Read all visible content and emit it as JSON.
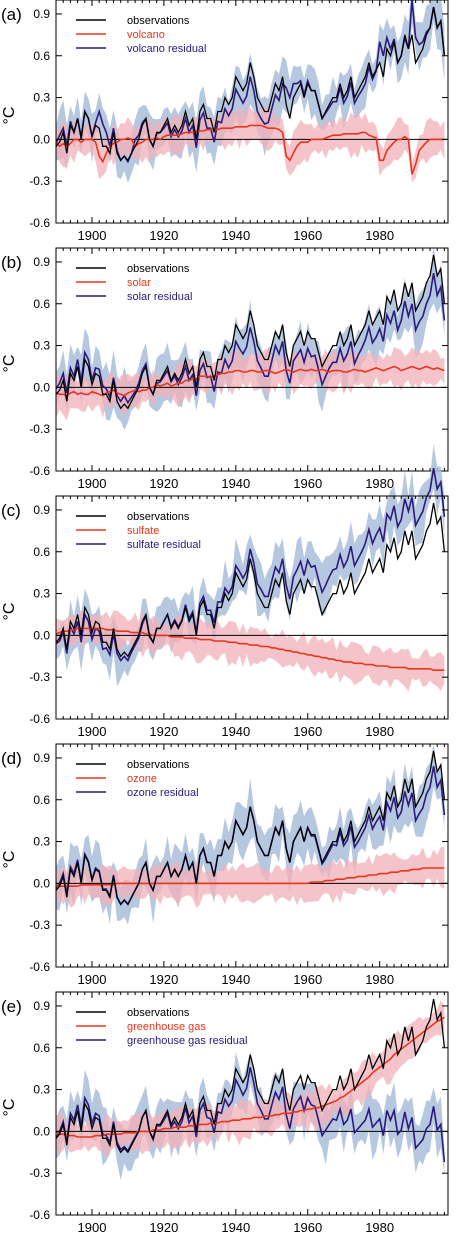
{
  "figure": {
    "panels": [
      {
        "label": "(a)",
        "legend": [
          "observations",
          "volcano",
          "volcano residual"
        ]
      },
      {
        "label": "(b)",
        "legend": [
          "observations",
          "solar",
          "solar residual"
        ]
      },
      {
        "label": "(c)",
        "legend": [
          "observations",
          "sulfate",
          "sulfate residual"
        ]
      },
      {
        "label": "(d)",
        "legend": [
          "observations",
          "ozone",
          "ozone residual"
        ]
      },
      {
        "label": "(e)",
        "legend": [
          "observations",
          "greenhouse gas",
          "greenhouse gas residual"
        ]
      }
    ]
  },
  "chart_data": {
    "type": "line",
    "ylabel": "°C",
    "xlim": [
      1890,
      1999
    ],
    "ylim": [
      -0.6,
      1.0
    ],
    "x_ticks": [
      1900,
      1920,
      1940,
      1960,
      1980
    ],
    "y_ticks": [
      -0.6,
      -0.3,
      0.0,
      0.3,
      0.6,
      0.9
    ],
    "grid": false,
    "legend_position": "top-left",
    "colors": {
      "observations": "#000000",
      "forced": "#e8361c",
      "residual": "#2a1b7a",
      "forced_band": "#f2b0b8",
      "residual_band": "#a9bedb"
    },
    "observations": [
      -0.05,
      -0.02,
      0.05,
      -0.1,
      0.1,
      0.05,
      0.15,
      0.0,
      0.2,
      0.15,
      0.02,
      0.1,
      0.08,
      -0.05,
      -0.05,
      -0.1,
      0.05,
      -0.1,
      -0.15,
      -0.12,
      -0.15,
      -0.1,
      -0.05,
      0.0,
      0.1,
      0.15,
      0.0,
      -0.05,
      0.05,
      0.05,
      0.1,
      0.15,
      0.05,
      0.1,
      0.05,
      0.1,
      0.2,
      0.1,
      0.15,
      0.0,
      0.2,
      0.25,
      0.15,
      0.15,
      0.05,
      0.2,
      0.2,
      0.3,
      0.25,
      0.3,
      0.45,
      0.4,
      0.35,
      0.4,
      0.55,
      0.45,
      0.3,
      0.25,
      0.2,
      0.2,
      0.3,
      0.4,
      0.35,
      0.45,
      0.25,
      0.15,
      0.3,
      0.35,
      0.4,
      0.3,
      0.4,
      0.35,
      0.35,
      0.25,
      0.15,
      0.2,
      0.25,
      0.3,
      0.3,
      0.4,
      0.3,
      0.35,
      0.45,
      0.3,
      0.35,
      0.4,
      0.45,
      0.55,
      0.45,
      0.5,
      0.55,
      0.45,
      0.65,
      0.6,
      0.7,
      0.55,
      0.6,
      0.75,
      0.65,
      0.75,
      0.55,
      0.6,
      0.65,
      0.75,
      0.8,
      0.95,
      0.8,
      0.85,
      0.6
    ],
    "series": [
      {
        "panel": "(a)",
        "forced": [
          -0.02,
          -0.05,
          -0.03,
          -0.05,
          -0.03,
          0.0,
          0.0,
          -0.02,
          0.0,
          0.0,
          0.0,
          -0.02,
          -0.12,
          -0.16,
          -0.1,
          -0.05,
          -0.03,
          -0.02,
          0.0,
          0.0,
          0.01,
          0.0,
          -0.05,
          -0.03,
          -0.02,
          0.0,
          0.0,
          0.0,
          0.01,
          0.0,
          0.02,
          0.03,
          0.03,
          0.03,
          0.03,
          0.04,
          0.05,
          0.05,
          0.05,
          0.06,
          0.06,
          0.06,
          0.07,
          0.07,
          0.07,
          0.07,
          0.08,
          0.08,
          0.08,
          0.08,
          0.09,
          0.09,
          0.09,
          0.09,
          0.1,
          0.1,
          0.1,
          0.1,
          0.09,
          0.08,
          0.08,
          0.08,
          0.07,
          0.05,
          -0.12,
          -0.15,
          -0.1,
          -0.05,
          -0.02,
          -0.02,
          -0.02,
          0.0,
          0.0,
          0.0,
          0.0,
          0.01,
          0.02,
          0.03,
          0.03,
          0.03,
          0.04,
          0.04,
          0.04,
          0.04,
          0.04,
          0.05,
          0.05,
          0.03,
          0.02,
          0.01,
          -0.15,
          -0.15,
          -0.08,
          -0.05,
          -0.02,
          0.0,
          0.0,
          0.02,
          0.0,
          -0.25,
          -0.18,
          -0.08,
          -0.05,
          -0.02,
          0.0,
          0.0,
          0.0,
          0.0,
          0.0
        ]
      },
      {
        "panel": "(b)",
        "forced": [
          -0.04,
          -0.05,
          -0.05,
          -0.06,
          -0.04,
          -0.03,
          -0.05,
          -0.04,
          -0.05,
          -0.05,
          -0.03,
          -0.04,
          -0.05,
          -0.06,
          -0.04,
          -0.03,
          -0.02,
          -0.04,
          -0.05,
          -0.06,
          -0.04,
          -0.03,
          -0.02,
          -0.03,
          -0.02,
          -0.02,
          0.0,
          0.0,
          0.02,
          0.01,
          0.02,
          0.03,
          0.01,
          0.02,
          0.03,
          0.03,
          0.05,
          0.05,
          0.06,
          0.06,
          0.08,
          0.08,
          0.08,
          0.07,
          0.08,
          0.09,
          0.1,
          0.1,
          0.11,
          0.11,
          0.12,
          0.12,
          0.11,
          0.11,
          0.12,
          0.12,
          0.11,
          0.11,
          0.12,
          0.12,
          0.11,
          0.1,
          0.11,
          0.12,
          0.13,
          0.12,
          0.11,
          0.12,
          0.13,
          0.12,
          0.12,
          0.13,
          0.12,
          0.12,
          0.13,
          0.12,
          0.11,
          0.12,
          0.12,
          0.12,
          0.11,
          0.11,
          0.12,
          0.13,
          0.12,
          0.12,
          0.11,
          0.12,
          0.13,
          0.14,
          0.13,
          0.12,
          0.13,
          0.14,
          0.15,
          0.14,
          0.12,
          0.13,
          0.14,
          0.15,
          0.14,
          0.13,
          0.14,
          0.15,
          0.14,
          0.13,
          0.14,
          0.13,
          0.12
        ]
      },
      {
        "panel": "(c)",
        "forced": [
          0.01,
          0.02,
          0.03,
          0.03,
          0.04,
          0.04,
          0.05,
          0.05,
          0.05,
          0.05,
          0.05,
          0.05,
          0.05,
          0.05,
          0.04,
          0.04,
          0.04,
          0.03,
          0.03,
          0.03,
          0.03,
          0.02,
          0.02,
          0.02,
          0.02,
          0.01,
          0.01,
          0.0,
          0.0,
          0.0,
          0.0,
          0.0,
          -0.01,
          -0.01,
          -0.01,
          -0.01,
          -0.02,
          -0.02,
          -0.02,
          -0.02,
          -0.03,
          -0.03,
          -0.03,
          -0.03,
          -0.04,
          -0.04,
          -0.04,
          -0.04,
          -0.05,
          -0.05,
          -0.05,
          -0.06,
          -0.06,
          -0.06,
          -0.07,
          -0.07,
          -0.07,
          -0.08,
          -0.08,
          -0.08,
          -0.09,
          -0.09,
          -0.1,
          -0.1,
          -0.11,
          -0.11,
          -0.12,
          -0.12,
          -0.13,
          -0.13,
          -0.14,
          -0.14,
          -0.15,
          -0.15,
          -0.16,
          -0.16,
          -0.17,
          -0.17,
          -0.18,
          -0.18,
          -0.19,
          -0.19,
          -0.19,
          -0.2,
          -0.2,
          -0.2,
          -0.21,
          -0.21,
          -0.21,
          -0.22,
          -0.22,
          -0.22,
          -0.22,
          -0.23,
          -0.23,
          -0.23,
          -0.23,
          -0.23,
          -0.24,
          -0.24,
          -0.24,
          -0.24,
          -0.24,
          -0.24,
          -0.24,
          -0.25,
          -0.25,
          -0.25,
          -0.25
        ]
      },
      {
        "panel": "(d)",
        "forced": [
          -0.02,
          -0.02,
          -0.02,
          -0.02,
          -0.02,
          -0.02,
          -0.02,
          -0.01,
          -0.01,
          -0.01,
          -0.01,
          -0.01,
          -0.01,
          -0.01,
          -0.01,
          -0.01,
          -0.01,
          0.0,
          0.0,
          0.0,
          0.0,
          0.0,
          0.0,
          0.0,
          0.0,
          0.0,
          0.0,
          0.0,
          0.0,
          0.0,
          0.0,
          0.0,
          0.0,
          0.0,
          0.0,
          0.0,
          0.0,
          0.0,
          0.0,
          0.0,
          0.0,
          0.0,
          0.0,
          0.0,
          0.0,
          0.0,
          0.0,
          0.0,
          0.0,
          0.0,
          0.0,
          0.0,
          0.0,
          0.0,
          0.0,
          0.0,
          0.0,
          0.0,
          0.0,
          0.0,
          0.0,
          0.0,
          0.0,
          0.0,
          0.0,
          0.0,
          0.0,
          0.0,
          0.0,
          0.0,
          0.0,
          0.01,
          0.01,
          0.01,
          0.01,
          0.02,
          0.02,
          0.02,
          0.03,
          0.03,
          0.03,
          0.04,
          0.04,
          0.04,
          0.05,
          0.05,
          0.05,
          0.06,
          0.06,
          0.06,
          0.07,
          0.07,
          0.07,
          0.08,
          0.08,
          0.08,
          0.09,
          0.09,
          0.09,
          0.1,
          0.1,
          0.1,
          0.11,
          0.11,
          0.11,
          0.11,
          0.11,
          0.11,
          0.11
        ]
      },
      {
        "panel": "(e)",
        "forced": [
          0.0,
          -0.02,
          -0.02,
          -0.03,
          -0.03,
          -0.03,
          -0.04,
          -0.04,
          -0.04,
          -0.04,
          -0.04,
          -0.03,
          -0.03,
          -0.03,
          -0.02,
          -0.02,
          -0.02,
          -0.02,
          -0.02,
          -0.01,
          -0.01,
          -0.01,
          -0.01,
          0.0,
          0.0,
          0.0,
          0.0,
          0.01,
          0.01,
          0.01,
          0.02,
          0.02,
          0.02,
          0.03,
          0.03,
          0.03,
          0.03,
          0.04,
          0.04,
          0.04,
          0.05,
          0.05,
          0.05,
          0.06,
          0.06,
          0.06,
          0.07,
          0.07,
          0.07,
          0.08,
          0.08,
          0.08,
          0.09,
          0.09,
          0.09,
          0.1,
          0.1,
          0.1,
          0.11,
          0.11,
          0.11,
          0.12,
          0.12,
          0.13,
          0.13,
          0.13,
          0.14,
          0.14,
          0.15,
          0.15,
          0.16,
          0.16,
          0.17,
          0.17,
          0.18,
          0.19,
          0.2,
          0.21,
          0.22,
          0.24,
          0.25,
          0.27,
          0.29,
          0.31,
          0.33,
          0.35,
          0.37,
          0.39,
          0.42,
          0.44,
          0.46,
          0.48,
          0.5,
          0.52,
          0.55,
          0.57,
          0.59,
          0.61,
          0.63,
          0.65,
          0.67,
          0.69,
          0.71,
          0.73,
          0.75,
          0.77,
          0.79,
          0.8,
          0.82
        ]
      }
    ]
  }
}
